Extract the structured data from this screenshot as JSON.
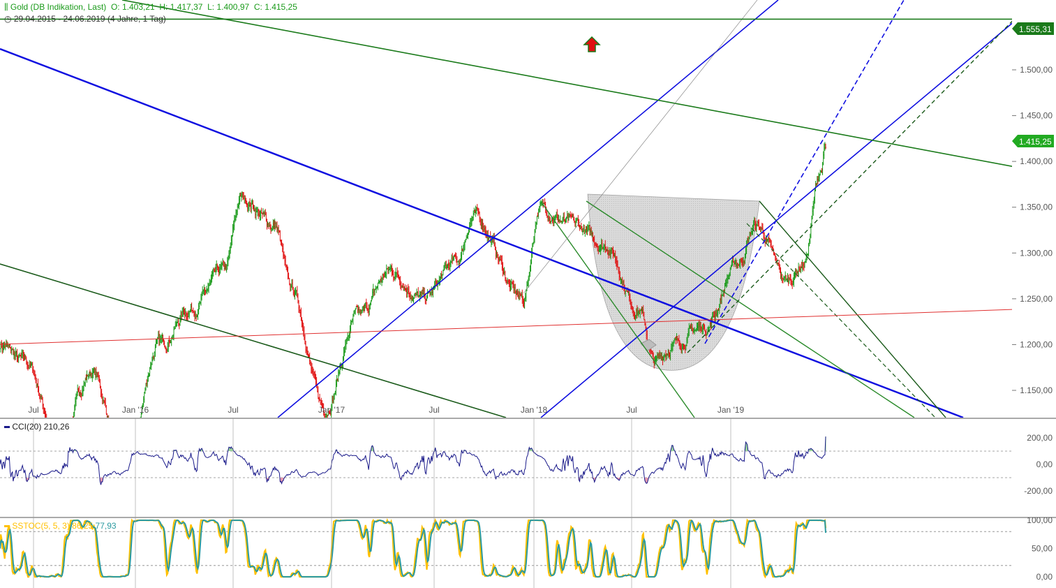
{
  "header": {
    "instrument": "Gold (DB Indikation, Last)",
    "ohlc_open_label": "O:",
    "ohlc_open": "1.403,21",
    "ohlc_high_label": "H:",
    "ohlc_high": "1.417,37",
    "ohlc_low_label": "L:",
    "ohlc_low": "1.400,97",
    "ohlc_close_label": "C:",
    "ohlc_close": "1.415,25",
    "date_range": "29.04.2015 - 24.06.2019",
    "period": "(4 Jahre, 1 Tag)",
    "icon_instrument": "candles-icon",
    "icon_period": "clock-icon"
  },
  "colors": {
    "up": "#1a9a1a",
    "down": "#e01010",
    "blue_line": "#1010e0",
    "green_line": "#1a7a1a",
    "dark_green": "#1a5a1a",
    "red_line": "#e03030",
    "cci": "#1a1a8a",
    "stoch_k": "#ffc000",
    "stoch_d": "#2a9aa0",
    "badge_green": "#1a7a1a",
    "badge_price": "#22aa22"
  },
  "price_badges": {
    "resistance": "1.555,31",
    "last": "1.415,25"
  },
  "indicators": {
    "cci_label": "CCI(20)",
    "cci_value": "210,26",
    "stoch_label": "SSTOC(5, 5, 3)",
    "stoch_k_value": "86,25",
    "stoch_d_value": "77,93"
  },
  "chart_data": [
    {
      "type": "line",
      "panel": "price",
      "x_tick_labels": [
        "Jul",
        "Jan '16",
        "Jul",
        "Jan '17",
        "Jul",
        "Jan '18",
        "Jul",
        "Jan '19"
      ],
      "y_tick_labels": [
        "1.150,00",
        "1.200,00",
        "1.250,00",
        "1.300,00",
        "1.350,00",
        "1.400,00",
        "1.450,00",
        "1.500,00"
      ],
      "ylim": [
        1120,
        1580
      ],
      "series": [
        {
          "x": [
            "2015-04-29",
            "2015-06",
            "2015-08",
            "2015-10",
            "2015-12",
            "2016-02",
            "2016-04",
            "2016-06",
            "2016-07",
            "2016-09",
            "2016-10",
            "2016-12",
            "2017-02",
            "2017-04",
            "2017-06",
            "2017-08",
            "2017-09",
            "2017-12",
            "2018-01",
            "2018-03",
            "2018-05",
            "2018-07",
            "2018-08",
            "2018-09",
            "2018-11",
            "2019-01",
            "2019-02",
            "2019-04",
            "2019-05",
            "2019-06",
            "2019-06-24"
          ],
          "values": [
            1200,
            1180,
            1095,
            1170,
            1060,
            1200,
            1240,
            1280,
            1360,
            1330,
            1260,
            1130,
            1230,
            1280,
            1250,
            1290,
            1340,
            1250,
            1350,
            1330,
            1310,
            1240,
            1180,
            1200,
            1220,
            1290,
            1330,
            1270,
            1290,
            1390,
            1415
          ]
        }
      ],
      "resistance_level": 1555.31
    },
    {
      "type": "line",
      "panel": "cci",
      "y_tick_labels": [
        "200,00",
        "0,00",
        "-200,00"
      ],
      "ylim": [
        -280,
        280
      ],
      "reference_levels": [
        100,
        -100
      ],
      "last_value": 210.26
    },
    {
      "type": "line",
      "panel": "stochastic",
      "y_tick_labels": [
        "100,00",
        "50,00",
        "0,00"
      ],
      "ylim": [
        0,
        100
      ],
      "reference_levels": [
        80,
        20
      ],
      "last_k": 86.25,
      "last_d": 77.93
    }
  ]
}
